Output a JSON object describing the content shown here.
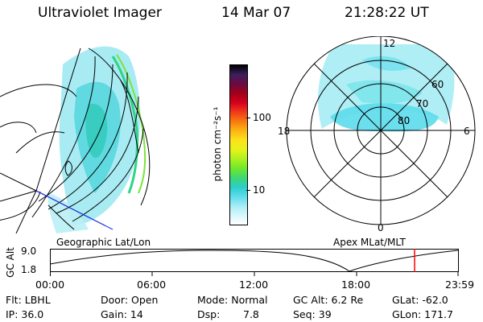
{
  "header": {
    "title": "Ultraviolet Imager",
    "date": "14 Mar 07",
    "time": "21:28:22 UT"
  },
  "colorbar": {
    "label": "photon cm⁻²s⁻¹",
    "ticks": [
      "100",
      "10"
    ],
    "colors": [
      "#000000",
      "#3b1f5e",
      "#6b0a40",
      "#a00018",
      "#d4001e",
      "#f03a1a",
      "#f77a10",
      "#fbb514",
      "#fde21a",
      "#e6f21a",
      "#aef020",
      "#6fe82a",
      "#3fd872",
      "#2ccdc8",
      "#5cdcec",
      "#a6ecf4",
      "#d8f7fb",
      "#ffffff"
    ]
  },
  "polar": {
    "hour_labels": {
      "top": "12",
      "left": "18",
      "right": "6",
      "bottom": "0"
    },
    "lat_labels": [
      "60",
      "70",
      "80"
    ]
  },
  "timeline": {
    "left_title": "Geographic Lat/Lon",
    "right_title": "Apex MLat/MLT",
    "y_axis_label": "GC Alt",
    "y_ticks": [
      "9.0",
      "1.8"
    ],
    "x_ticks": [
      "00:00",
      "06:00",
      "12:00",
      "18:00",
      "23:59"
    ],
    "marker_color": "#ff0000"
  },
  "footer": {
    "row1": {
      "flt": "Flt: LBHL",
      "door": "Door: Open",
      "mode": "Mode: Normal",
      "gcalt": "GC Alt: 6.2 Re",
      "glat": "GLat: -62.0"
    },
    "row2": {
      "ip": "IP: 36.0",
      "gain": "Gain: 14",
      "dsp": "Dsp:",
      "dsp_val": "7.8",
      "seq": "Seq: 39",
      "glon": "GLon: 171.7"
    }
  }
}
